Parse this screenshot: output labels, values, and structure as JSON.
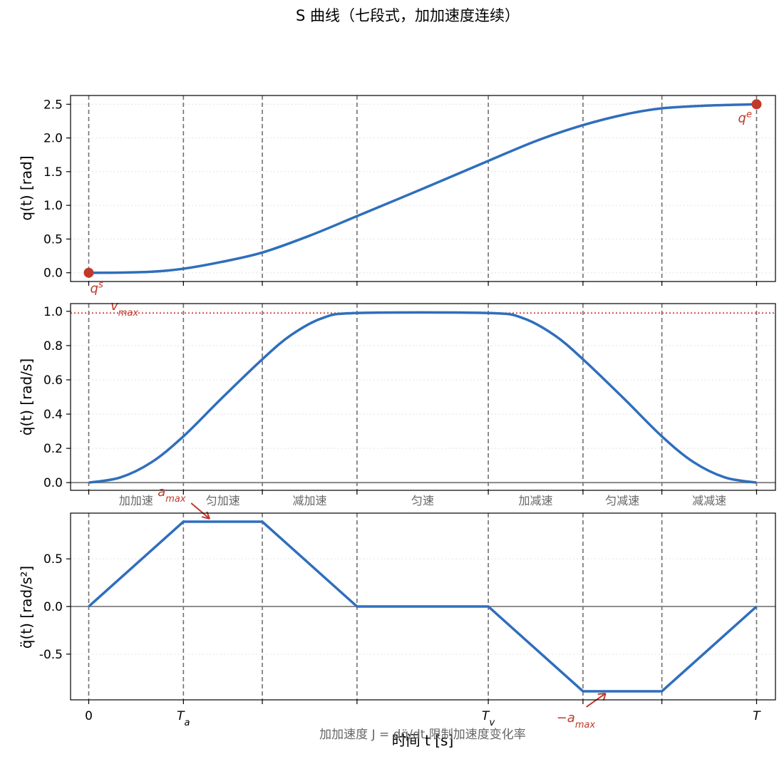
{
  "chart_data": {
    "title": "S 曲线（七段式，加加速度连续）",
    "type": "line",
    "x_tick_labels": [
      "0",
      "T_a",
      "T_v",
      "T"
    ],
    "phases": [
      0,
      1.5,
      2.75,
      4.25,
      6.33,
      7.83,
      9.08,
      10.58
    ],
    "phase_labels": [
      "加加速",
      "匀加速",
      "减加速",
      "匀速",
      "加减速",
      "匀减速",
      "减减速"
    ],
    "xlabel": "时间 t [s]",
    "footnote": "加加速度 J = dq̈/dt 限制加速度变化率",
    "panels": [
      {
        "ylabel": "q(t) [rad]",
        "ylim": [
          -0.13,
          2.63
        ],
        "yticks": [
          "0.0",
          "0.5",
          "1.0",
          "1.5",
          "2.0",
          "2.5"
        ],
        "series": {
          "x": [
            0,
            0.5,
            1.0,
            1.5,
            2.1,
            2.75,
            3.5,
            4.25,
            5.3,
            6.33,
            7.1,
            7.83,
            8.5,
            9.08,
            9.8,
            10.58
          ],
          "y": [
            0,
            0.002,
            0.015,
            0.06,
            0.16,
            0.3,
            0.55,
            0.84,
            1.25,
            1.66,
            1.96,
            2.19,
            2.35,
            2.44,
            2.48,
            2.5
          ]
        },
        "annotations": [
          {
            "text": "q^s",
            "x": 0,
            "y": 0
          },
          {
            "text": "q^e",
            "x": 10.58,
            "y": 2.5
          }
        ]
      },
      {
        "ylabel": "q̇(t) [rad/s]",
        "ylim": [
          -0.045,
          1.045
        ],
        "yticks": [
          "0.0",
          "0.2",
          "0.4",
          "0.6",
          "0.8",
          "1.0"
        ],
        "vmax": 0.99,
        "series": {
          "x": [
            0,
            0.5,
            1.0,
            1.5,
            2.1,
            2.75,
            3.2,
            3.7,
            4.25,
            6.33,
            6.88,
            7.38,
            7.83,
            8.48,
            9.08,
            9.58,
            10.08,
            10.58
          ],
          "y": [
            0,
            0.03,
            0.12,
            0.27,
            0.49,
            0.72,
            0.86,
            0.96,
            0.99,
            0.99,
            0.96,
            0.86,
            0.72,
            0.49,
            0.27,
            0.12,
            0.03,
            0
          ]
        },
        "annotations": [
          {
            "text": "v_max",
            "x": 0.3,
            "y": 0.99
          }
        ]
      },
      {
        "ylabel": "q̈(t) [rad/s²]",
        "ylim": [
          -0.98,
          0.98
        ],
        "yticks": [
          "0.5",
          "0.0",
          "-0.5"
        ],
        "series": {
          "x": [
            0,
            1.5,
            2.75,
            4.25,
            6.33,
            7.83,
            9.08,
            10.58
          ],
          "y": [
            0,
            0.89,
            0.89,
            0,
            0,
            -0.89,
            -0.89,
            0
          ]
        },
        "annotations": [
          {
            "text": "a_max",
            "x": 1.6,
            "y": 0.89
          },
          {
            "text": "−a_max",
            "x": 8.2,
            "y": -0.89
          }
        ]
      }
    ]
  }
}
